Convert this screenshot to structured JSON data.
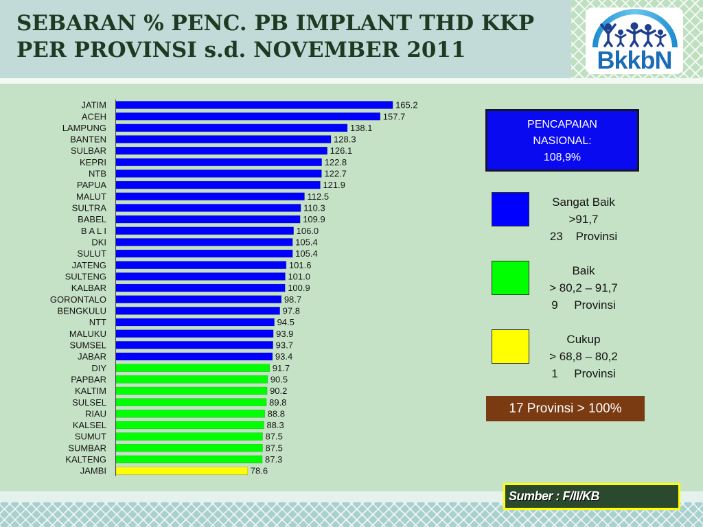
{
  "slide": {
    "logo_text": "BkkbN",
    "source": "Sumber : F/II/KB",
    "source_box_color": "#2b4a2d",
    "source_border_color": "#ffff00"
  },
  "national": {
    "lines": [
      "PENCAPAIAN",
      "NASIONAL:",
      "108,9%"
    ],
    "color": "#0a0af0"
  },
  "legend": [
    {
      "label": "Sangat Baik",
      "range": ">91,7",
      "count": "23    Provinsi",
      "color": "#0000ff"
    },
    {
      "label": "Baik",
      "range": "> 80,2 – 91,7",
      "count": "9     Provinsi",
      "color": "#00ff00"
    },
    {
      "label": "Cukup",
      "range": "> 68,8 – 80,2",
      "count": "1     Provinsi",
      "color": "#ffff00"
    }
  ],
  "summary": {
    "text": "17 Provinsi > 100%",
    "color": "#7a3a12"
  },
  "chart_data": {
    "type": "bar",
    "orientation": "horizontal",
    "title": [
      "SEBARAN % PENC. PB IMPLANT THD KKP",
      "PER PROVINSI s.d. NOVEMBER 2011"
    ],
    "categories": [
      "JATIM",
      "ACEH",
      "LAMPUNG",
      "BANTEN",
      "SULBAR",
      "KEPRI",
      "NTB",
      "PAPUA",
      "MALUT",
      "SULTRA",
      "BABEL",
      "B A L I",
      "DKI",
      "SULUT",
      "JATENG",
      "SULTENG",
      "KALBAR",
      "GORONTALO",
      "BENGKULU",
      "NTT",
      "MALUKU",
      "SUMSEL",
      "JABAR",
      "DIY",
      "PAPBAR",
      "KALTIM",
      "SULSEL",
      "RIAU",
      "KALSEL",
      "SUMUT",
      "SUMBAR",
      "KALTENG",
      "JAMBI"
    ],
    "values": [
      165.2,
      157.7,
      138.1,
      128.3,
      126.1,
      122.8,
      122.7,
      121.9,
      112.5,
      110.3,
      109.9,
      106.0,
      105.4,
      105.4,
      101.6,
      101.0,
      100.9,
      98.7,
      97.8,
      94.5,
      93.9,
      93.7,
      93.4,
      91.7,
      90.5,
      90.2,
      89.8,
      88.8,
      88.3,
      87.5,
      87.5,
      87.3,
      78.6
    ],
    "bar_colors": [
      "#0000ff",
      "#0000ff",
      "#0000ff",
      "#0000ff",
      "#0000ff",
      "#0000ff",
      "#0000ff",
      "#0000ff",
      "#0000ff",
      "#0000ff",
      "#0000ff",
      "#0000ff",
      "#0000ff",
      "#0000ff",
      "#0000ff",
      "#0000ff",
      "#0000ff",
      "#0000ff",
      "#0000ff",
      "#0000ff",
      "#0000ff",
      "#0000ff",
      "#0000ff",
      "#00ff00",
      "#00ff00",
      "#00ff00",
      "#00ff00",
      "#00ff00",
      "#00ff00",
      "#00ff00",
      "#00ff00",
      "#00ff00",
      "#ffff00"
    ],
    "grid": false,
    "legend": "right"
  }
}
